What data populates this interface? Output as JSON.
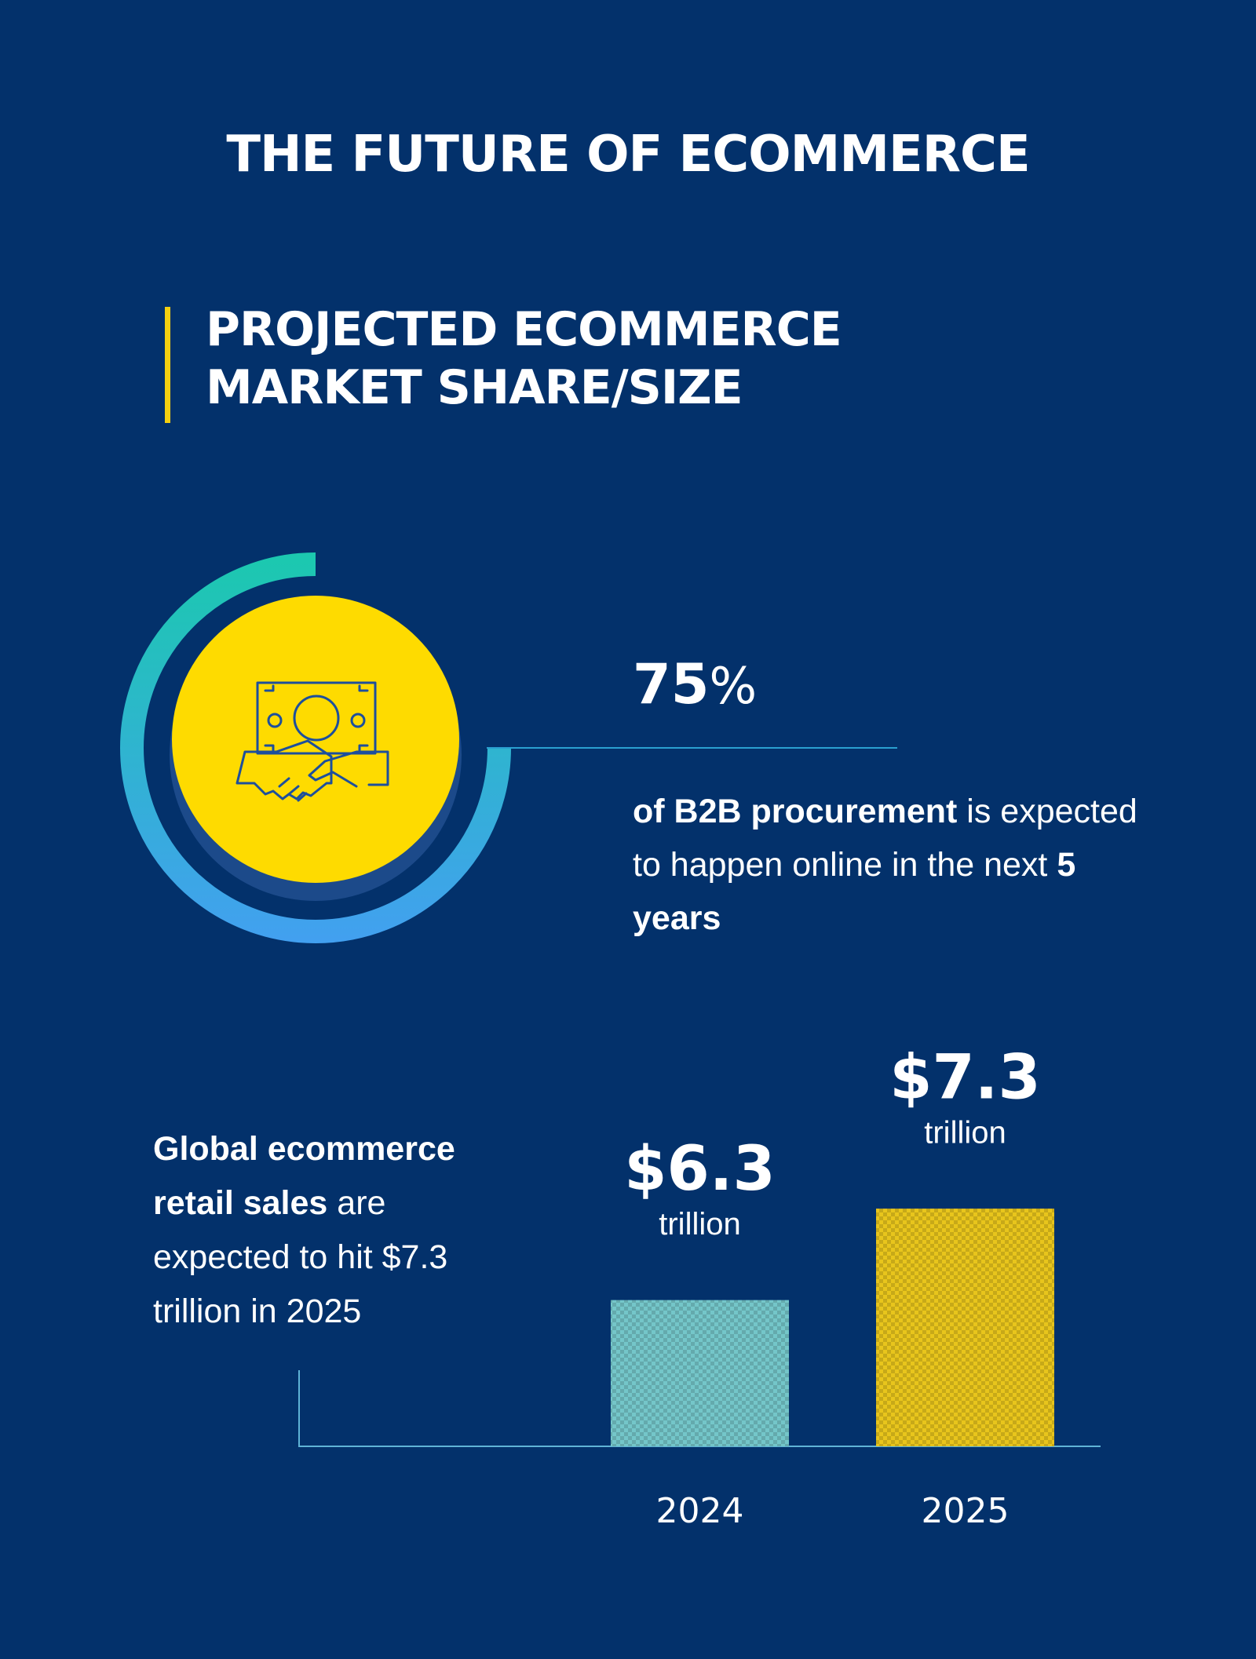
{
  "title": "THE FUTURE OF ECOMMERCE",
  "section_title": [
    "PROJECTED ECOMMERCE",
    "MARKET SHARE/SIZE"
  ],
  "stat": {
    "value": 75,
    "unit": "%",
    "text": [
      {
        "text": "of B2B procurement",
        "bold": true
      },
      {
        "text": " is expected to happen online in the next "
      },
      {
        "text": "5 years",
        "bold": true
      }
    ]
  },
  "chart_data": {
    "type": "bar",
    "description": [
      {
        "text": "Global ecommerce retail sales",
        "bold": true
      },
      {
        "text": " are expected to hit $7.3 trillion in 2025"
      }
    ],
    "categories": [
      "2024",
      "2025"
    ],
    "values": [
      6.3,
      7.3
    ],
    "value_labels": [
      "$6.3",
      "$7.3"
    ],
    "value_unit": "trillion",
    "colors": [
      "#74c6c9",
      "#e8c51c"
    ],
    "ylim": [
      4.7,
      8
    ]
  }
}
